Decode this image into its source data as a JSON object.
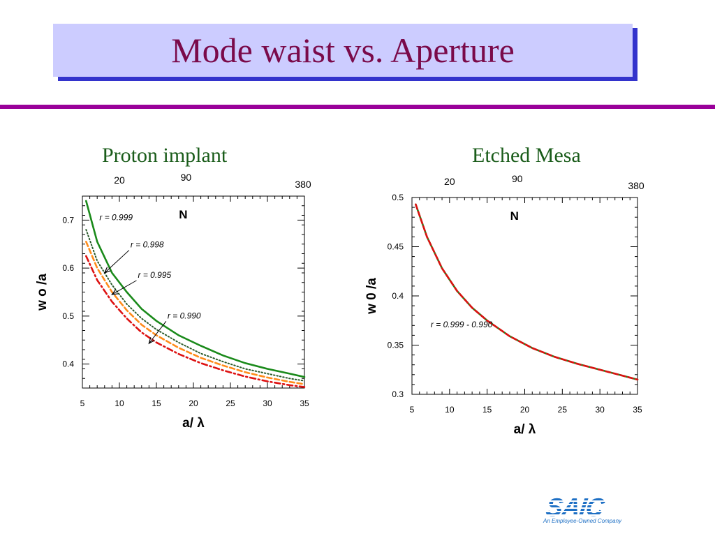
{
  "slide": {
    "title": "Mode waist vs. Aperture",
    "logo": {
      "word": "SAIC",
      "tagline": "An Employee-Owned Company"
    }
  },
  "chart_data": [
    {
      "type": "line",
      "title": "Proton implant",
      "xlabel": "a/ λ",
      "ylabel": "w o /a",
      "xlim": [
        5,
        35
      ],
      "ylim": [
        0.35,
        0.75
      ],
      "xticks": [
        5,
        10,
        15,
        20,
        25,
        30,
        35
      ],
      "yticks": [
        0.4,
        0.5,
        0.6,
        0.7
      ],
      "top_axis": {
        "label": "N",
        "ticks": [
          {
            "label": "20",
            "x": 10
          },
          {
            "label": "90",
            "x": 19
          },
          {
            "label": "380",
            "x": 35
          }
        ]
      },
      "series": [
        {
          "name": "r = 0.999",
          "color": "#1a8a1a",
          "dash": "solid",
          "x": [
            5.5,
            7,
            9,
            11,
            13,
            15,
            18,
            21,
            24,
            27,
            30,
            33,
            35
          ],
          "y": [
            0.74,
            0.655,
            0.59,
            0.55,
            0.515,
            0.49,
            0.46,
            0.438,
            0.418,
            0.402,
            0.39,
            0.38,
            0.373
          ]
        },
        {
          "name": "r = 0.998",
          "color": "#2a5a2a",
          "dash": "dotted",
          "x": [
            5.5,
            7,
            9,
            11,
            13,
            15,
            18,
            21,
            24,
            27,
            30,
            33,
            35
          ],
          "y": [
            0.68,
            0.615,
            0.565,
            0.525,
            0.495,
            0.472,
            0.445,
            0.422,
            0.405,
            0.39,
            0.38,
            0.37,
            0.365
          ]
        },
        {
          "name": "r = 0.995",
          "color": "#ff8c1a",
          "dash": "dashed",
          "x": [
            5.5,
            7,
            9,
            11,
            13,
            15,
            18,
            21,
            24,
            27,
            30,
            33,
            35
          ],
          "y": [
            0.655,
            0.6,
            0.55,
            0.512,
            0.482,
            0.46,
            0.434,
            0.413,
            0.397,
            0.383,
            0.372,
            0.363,
            0.358
          ]
        },
        {
          "name": "r = 0.990",
          "color": "#dd1111",
          "dash": "dashdot",
          "x": [
            5.5,
            7,
            9,
            11,
            13,
            15,
            18,
            21,
            24,
            27,
            30,
            33,
            35
          ],
          "y": [
            0.625,
            0.575,
            0.53,
            0.495,
            0.466,
            0.445,
            0.421,
            0.402,
            0.387,
            0.374,
            0.364,
            0.356,
            0.352
          ]
        }
      ],
      "annotations": [
        {
          "text": "r = 0.999",
          "x": 7.3,
          "y": 0.7
        },
        {
          "text": "r = 0.998",
          "x": 11.5,
          "y": 0.643,
          "arrow_to": [
            8,
            0.59
          ]
        },
        {
          "text": "r = 0.995",
          "x": 12.5,
          "y": 0.58,
          "arrow_to": [
            9,
            0.545
          ]
        },
        {
          "text": "r = 0.990",
          "x": 16.5,
          "y": 0.495,
          "arrow_to": [
            14,
            0.443
          ]
        }
      ]
    },
    {
      "type": "line",
      "title": "Etched Mesa",
      "xlabel": "a/ λ",
      "ylabel": "w 0 /a",
      "xlim": [
        5,
        35
      ],
      "ylim": [
        0.3,
        0.5
      ],
      "xticks": [
        5,
        10,
        15,
        20,
        25,
        30,
        35
      ],
      "yticks": [
        0.3,
        0.35,
        0.4,
        0.45,
        0.5
      ],
      "top_axis": {
        "label": "N",
        "ticks": [
          {
            "label": "20",
            "x": 10
          },
          {
            "label": "90",
            "x": 19
          },
          {
            "label": "380",
            "x": 35
          }
        ]
      },
      "series": [
        {
          "name": "r = 0.999 - 0.990",
          "color": "#1a8a1a",
          "dash": "solid",
          "x": [
            5.5,
            7,
            9,
            11,
            13,
            15,
            18,
            21,
            24,
            27,
            30,
            33,
            35
          ],
          "y": [
            0.493,
            0.46,
            0.428,
            0.405,
            0.388,
            0.375,
            0.359,
            0.347,
            0.338,
            0.331,
            0.325,
            0.319,
            0.315
          ]
        },
        {
          "name": "",
          "color": "#dd1111",
          "dash": "dashed",
          "x": [
            5.5,
            7,
            9,
            11,
            13,
            15,
            18,
            21,
            24,
            27,
            30,
            33,
            35
          ],
          "y": [
            0.493,
            0.46,
            0.428,
            0.405,
            0.388,
            0.375,
            0.359,
            0.347,
            0.338,
            0.331,
            0.325,
            0.319,
            0.315
          ]
        }
      ],
      "annotations": [
        {
          "text": "r = 0.999 - 0.990",
          "x": 7.5,
          "y": 0.368
        }
      ]
    }
  ]
}
